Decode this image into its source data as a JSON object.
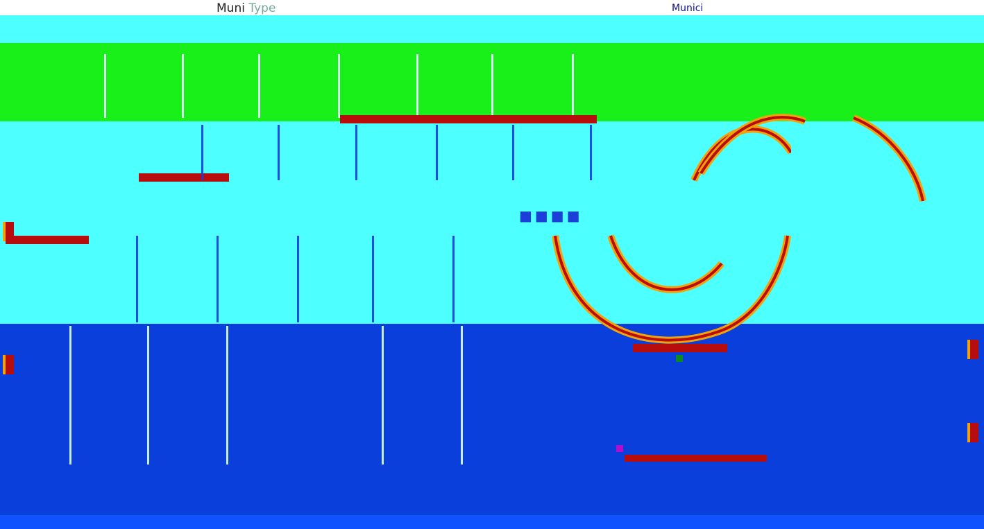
{
  "header": {
    "title_prefix": "Muni",
    "title_suffix": "Type",
    "link_text": "Munici"
  },
  "nav": {
    "caption": "",
    "sub_caption": ""
  },
  "colors": {
    "top_strip": "#ffffff",
    "cyan": "#4dffff",
    "green": "#19f019",
    "blue": "#0b3fdc",
    "accent_red": "#b80d0d",
    "accent_orange": "#f2a30a",
    "bottom_bar": "#0f53ff"
  },
  "icons": {
    "loading": "dots-icon",
    "wave": "wave-icon"
  }
}
